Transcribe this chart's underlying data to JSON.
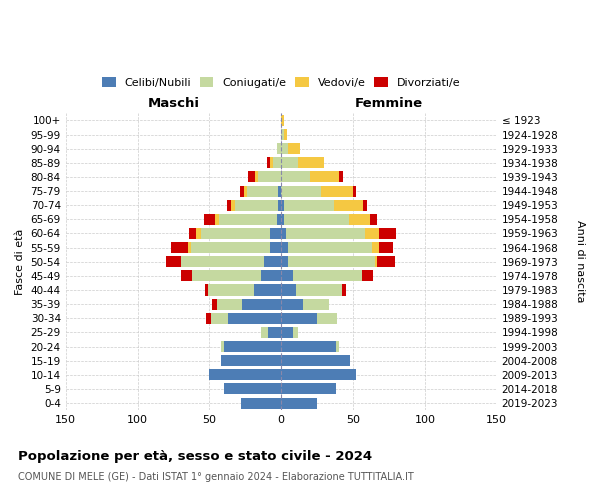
{
  "age_groups": [
    "0-4",
    "5-9",
    "10-14",
    "15-19",
    "20-24",
    "25-29",
    "30-34",
    "35-39",
    "40-44",
    "45-49",
    "50-54",
    "55-59",
    "60-64",
    "65-69",
    "70-74",
    "75-79",
    "80-84",
    "85-89",
    "90-94",
    "95-99",
    "100+"
  ],
  "birth_years": [
    "2019-2023",
    "2014-2018",
    "2009-2013",
    "2004-2008",
    "1999-2003",
    "1994-1998",
    "1989-1993",
    "1984-1988",
    "1979-1983",
    "1974-1978",
    "1969-1973",
    "1964-1968",
    "1959-1963",
    "1954-1958",
    "1949-1953",
    "1944-1948",
    "1939-1943",
    "1934-1938",
    "1929-1933",
    "1924-1928",
    "≤ 1923"
  ],
  "colors": {
    "celibi": "#4d7db5",
    "coniugati": "#c5d9a0",
    "vedovi": "#f5c842",
    "divorziati": "#cc0000"
  },
  "males": {
    "celibi": [
      28,
      40,
      50,
      42,
      40,
      9,
      37,
      27,
      19,
      14,
      12,
      8,
      8,
      3,
      2,
      2,
      0,
      0,
      0,
      0,
      0
    ],
    "coniugati": [
      0,
      0,
      0,
      0,
      2,
      5,
      12,
      18,
      32,
      48,
      58,
      55,
      48,
      40,
      30,
      22,
      16,
      6,
      3,
      0,
      0
    ],
    "vedovi": [
      0,
      0,
      0,
      0,
      0,
      0,
      0,
      0,
      0,
      0,
      0,
      2,
      3,
      3,
      3,
      2,
      2,
      2,
      0,
      0,
      0
    ],
    "divorziati": [
      0,
      0,
      0,
      0,
      0,
      0,
      3,
      3,
      2,
      8,
      10,
      12,
      5,
      8,
      3,
      3,
      5,
      2,
      0,
      0,
      0
    ]
  },
  "females": {
    "nubili": [
      25,
      38,
      52,
      48,
      38,
      8,
      25,
      15,
      10,
      8,
      5,
      5,
      3,
      2,
      2,
      0,
      0,
      0,
      0,
      0,
      0
    ],
    "coniugate": [
      0,
      0,
      0,
      0,
      2,
      4,
      14,
      18,
      32,
      48,
      60,
      58,
      55,
      45,
      35,
      28,
      20,
      12,
      5,
      2,
      0
    ],
    "vedove": [
      0,
      0,
      0,
      0,
      0,
      0,
      0,
      0,
      0,
      0,
      2,
      5,
      10,
      15,
      20,
      22,
      20,
      18,
      8,
      2,
      2
    ],
    "divorziate": [
      0,
      0,
      0,
      0,
      0,
      0,
      0,
      0,
      3,
      8,
      12,
      10,
      12,
      5,
      3,
      2,
      3,
      0,
      0,
      0,
      0
    ]
  },
  "xlim": 150,
  "title_bold": "Popolazione per età, sesso e stato civile - 2024",
  "subtitle": "COMUNE DI MELE (GE) - Dati ISTAT 1° gennaio 2024 - Elaborazione TUTTITALIA.IT",
  "xlabel_left": "Maschi",
  "xlabel_right": "Femmine",
  "ylabel_left": "Fasce di età",
  "ylabel_right": "Anni di nascita",
  "xtick_vals": [
    -150,
    -100,
    -50,
    0,
    50,
    100,
    150
  ],
  "xtick_labels": [
    "150",
    "100",
    "50",
    "0",
    "50",
    "100",
    "150"
  ],
  "bg_color": "#ffffff",
  "grid_color": "#cccccc",
  "bar_height": 0.78
}
